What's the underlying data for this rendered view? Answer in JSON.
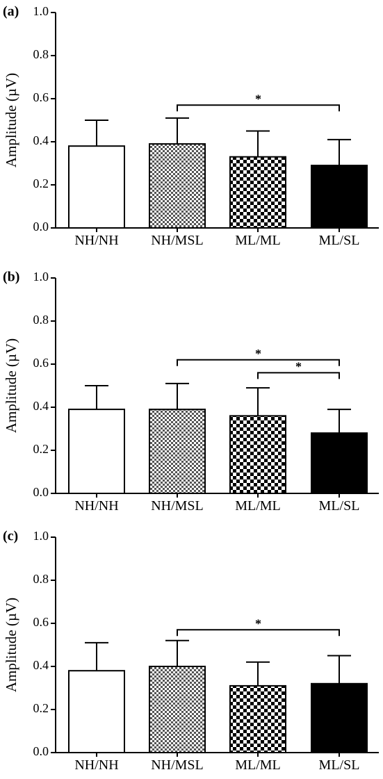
{
  "chart_data": [
    {
      "type": "bar",
      "panel_label": "(a)",
      "ylabel": "Amplitude (µV)",
      "ylim": [
        0,
        1.0
      ],
      "yticks": [
        "0.0",
        "0.2",
        "0.4",
        "0.6",
        "0.8",
        "1.0"
      ],
      "categories": [
        "NH/NH",
        "NH/MSL",
        "ML/ML",
        "ML/SL"
      ],
      "values": [
        0.38,
        0.39,
        0.33,
        0.29
      ],
      "errors": [
        0.12,
        0.12,
        0.12,
        0.12
      ],
      "fills": [
        "white",
        "fine-checker",
        "checker",
        "black"
      ],
      "significance": [
        {
          "from": "NH/MSL",
          "to": "ML/SL",
          "label": "*",
          "y": 0.57
        }
      ]
    },
    {
      "type": "bar",
      "panel_label": "(b)",
      "ylabel": "Amplitude (µV)",
      "ylim": [
        0,
        1.0
      ],
      "yticks": [
        "0.0",
        "0.2",
        "0.4",
        "0.6",
        "0.8",
        "1.0"
      ],
      "categories": [
        "NH/NH",
        "NH/MSL",
        "ML/ML",
        "ML/SL"
      ],
      "values": [
        0.39,
        0.39,
        0.36,
        0.28
      ],
      "errors": [
        0.11,
        0.12,
        0.13,
        0.11
      ],
      "fills": [
        "white",
        "fine-checker",
        "checker",
        "black"
      ],
      "significance": [
        {
          "from": "NH/MSL",
          "to": "ML/SL",
          "label": "*",
          "y": 0.62
        },
        {
          "from": "ML/ML",
          "to": "ML/SL",
          "label": "*",
          "y": 0.56
        }
      ]
    },
    {
      "type": "bar",
      "panel_label": "(c)",
      "ylabel": "Amplitude (µV)",
      "ylim": [
        0,
        1.0
      ],
      "yticks": [
        "0.0",
        "0.2",
        "0.4",
        "0.6",
        "0.8",
        "1.0"
      ],
      "categories": [
        "NH/NH",
        "NH/MSL",
        "ML/ML",
        "ML/SL"
      ],
      "values": [
        0.38,
        0.4,
        0.31,
        0.32
      ],
      "errors": [
        0.13,
        0.12,
        0.11,
        0.13
      ],
      "fills": [
        "white",
        "fine-checker",
        "checker",
        "black"
      ],
      "significance": [
        {
          "from": "NH/MSL",
          "to": "ML/SL",
          "label": "*",
          "y": 0.57
        }
      ]
    }
  ]
}
